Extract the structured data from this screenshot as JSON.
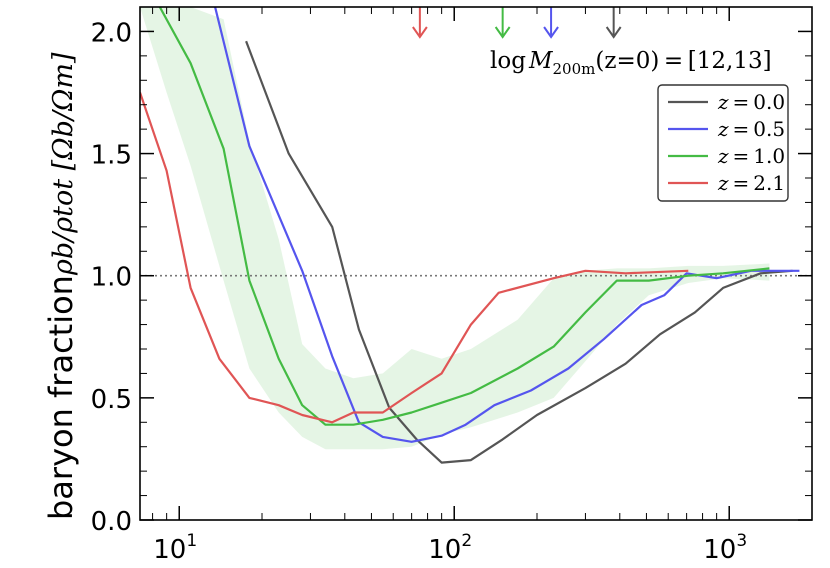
{
  "chart_data": {
    "type": "line",
    "title": "",
    "annotation": "log M_200m(z=0) = [12,13]",
    "annotation_parts": {
      "prefix": "log",
      "M": "M",
      "sub": "200m",
      "rest": "(z=0) = [12,13]"
    },
    "xlabel": "",
    "ylabel": {
      "text": "baryon fraction",
      "math": "ρb/ρtot [Ωb/Ωm]"
    },
    "xscale": "log",
    "xlim": [
      7.2,
      2000
    ],
    "ylim": [
      0.0,
      2.1
    ],
    "yticks": [
      {
        "value": 0.0,
        "label": "0.0"
      },
      {
        "value": 0.5,
        "label": "0.5"
      },
      {
        "value": 1.0,
        "label": "1.0"
      },
      {
        "value": 1.5,
        "label": "1.5"
      },
      {
        "value": 2.0,
        "label": "2.0"
      }
    ],
    "xticks": [
      {
        "value": 10,
        "base": "10",
        "exp": "1"
      },
      {
        "value": 100,
        "base": "10",
        "exp": "2"
      },
      {
        "value": 1000,
        "base": "10",
        "exp": "3"
      }
    ],
    "reference_line": {
      "y": 1.0,
      "style": "dotted",
      "color": "#777777"
    },
    "legend": {
      "placement": "top-right"
    },
    "series": [
      {
        "name": "z = 0.0",
        "z_label": "z",
        "z_value": "0.0",
        "color": "#555555",
        "x": [
          17.5,
          25,
          36,
          45,
          58,
          73,
          90,
          115,
          150,
          200,
          300,
          420,
          560,
          750,
          950,
          1300,
          1700
        ],
        "y": [
          1.96,
          1.5,
          1.2,
          0.78,
          0.46,
          0.33,
          0.235,
          0.245,
          0.33,
          0.43,
          0.54,
          0.64,
          0.76,
          0.85,
          0.95,
          1.01,
          1.02
        ]
      },
      {
        "name": "z = 0.5",
        "z_label": "z",
        "z_value": "0.5",
        "color": "#5555ee",
        "x": [
          13.5,
          18,
          28,
          36,
          45,
          55,
          70,
          90,
          110,
          140,
          190,
          260,
          350,
          480,
          580,
          700,
          900,
          1200,
          1800
        ],
        "y": [
          2.1,
          1.53,
          1.02,
          0.67,
          0.4,
          0.34,
          0.32,
          0.345,
          0.39,
          0.47,
          0.53,
          0.62,
          0.74,
          0.88,
          0.92,
          1.01,
          0.99,
          1.02,
          1.02
        ]
      },
      {
        "name": "z = 1.0",
        "z_label": "z",
        "z_value": "1.0",
        "color": "#44bb44",
        "x": [
          8.5,
          11,
          14.5,
          18,
          23,
          28,
          34,
          43,
          55,
          70,
          90,
          115,
          170,
          230,
          300,
          390,
          510,
          710,
          950,
          1400
        ],
        "y": [
          2.1,
          1.87,
          1.52,
          0.98,
          0.66,
          0.47,
          0.39,
          0.39,
          0.41,
          0.44,
          0.48,
          0.52,
          0.62,
          0.71,
          0.85,
          0.98,
          0.98,
          1.0,
          1.01,
          1.03
        ]
      },
      {
        "name": "z = 2.1",
        "z_label": "z",
        "z_value": "2.1",
        "color": "#e05555",
        "x": [
          7.2,
          9,
          11,
          14,
          18,
          23,
          28,
          36,
          43,
          55,
          70,
          90,
          115,
          145,
          230,
          300,
          420,
          710
        ],
        "y": [
          1.75,
          1.43,
          0.95,
          0.66,
          0.5,
          0.47,
          0.43,
          0.4,
          0.44,
          0.44,
          0.52,
          0.6,
          0.8,
          0.93,
          0.99,
          1.02,
          1.01,
          1.02
        ]
      }
    ],
    "band": {
      "name": "z = 1.0 scatter",
      "color": "#44bb44",
      "x": [
        7.2,
        9,
        11,
        14.5,
        18,
        23,
        28,
        34,
        43,
        55,
        70,
        90,
        115,
        170,
        230,
        300,
        390,
        510,
        710,
        950,
        1400
      ],
      "y_upper": [
        2.1,
        2.1,
        2.1,
        2.05,
        1.55,
        1.15,
        0.72,
        0.62,
        0.58,
        0.6,
        0.7,
        0.66,
        0.7,
        0.82,
        0.99,
        1.02,
        1.03,
        1.03,
        1.04,
        1.04,
        1.05
      ],
      "y_lower": [
        2.1,
        1.75,
        1.45,
        0.98,
        0.62,
        0.44,
        0.34,
        0.29,
        0.29,
        0.29,
        0.3,
        0.35,
        0.38,
        0.44,
        0.5,
        0.65,
        0.8,
        0.92,
        0.97,
        0.99,
        0.98
      ]
    },
    "arrows": [
      {
        "x": 75,
        "color": "#e05555"
      },
      {
        "x": 150,
        "color": "#44bb44"
      },
      {
        "x": 225,
        "color": "#5555ee"
      },
      {
        "x": 380,
        "color": "#555555"
      }
    ]
  }
}
